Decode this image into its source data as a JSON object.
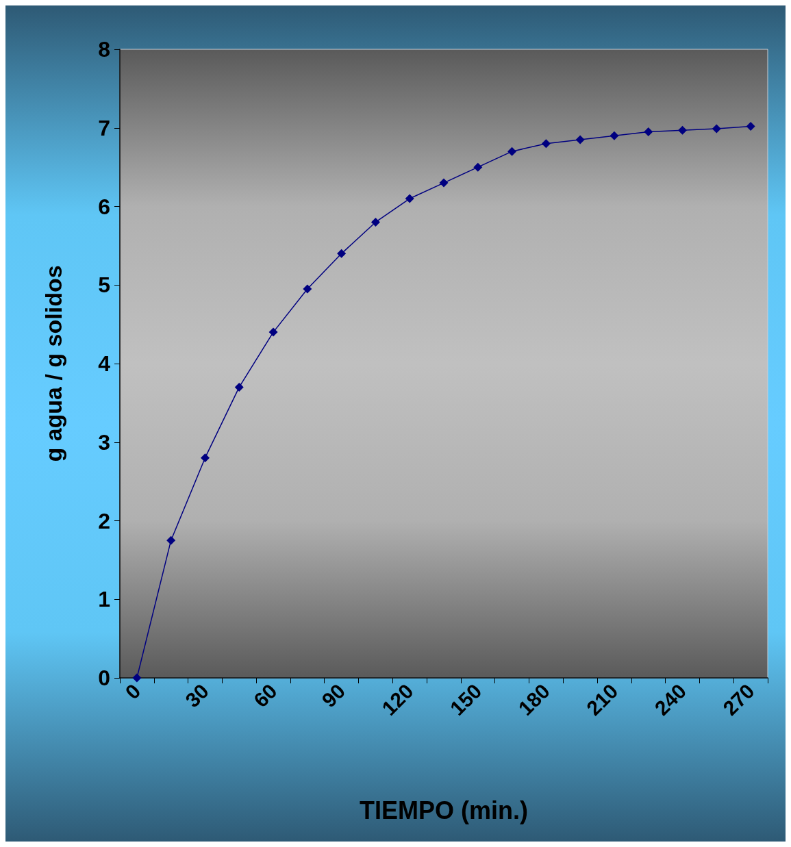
{
  "chart_data": {
    "type": "line",
    "xlabel": "TIEMPO (min.)",
    "ylabel": "g agua / g solidos",
    "categories": [
      "0",
      null,
      "30",
      null,
      "60",
      null,
      "90",
      null,
      "120",
      null,
      "150",
      null,
      "180",
      null,
      "210",
      null,
      "240",
      null,
      "270"
    ],
    "series": [
      {
        "color": "#000080",
        "values": [
          0,
          1.75,
          2.8,
          3.7,
          4.4,
          4.95,
          5.4,
          5.8,
          6.1,
          6.3,
          6.5,
          6.7,
          6.8,
          6.85,
          6.9,
          6.95,
          6.97,
          6.99,
          7.02
        ]
      }
    ],
    "ylim": [
      0,
      8
    ],
    "yticks": [
      0,
      1,
      2,
      3,
      4,
      5,
      6,
      7,
      8
    ],
    "marker": "diamond",
    "line_style": "solid"
  }
}
